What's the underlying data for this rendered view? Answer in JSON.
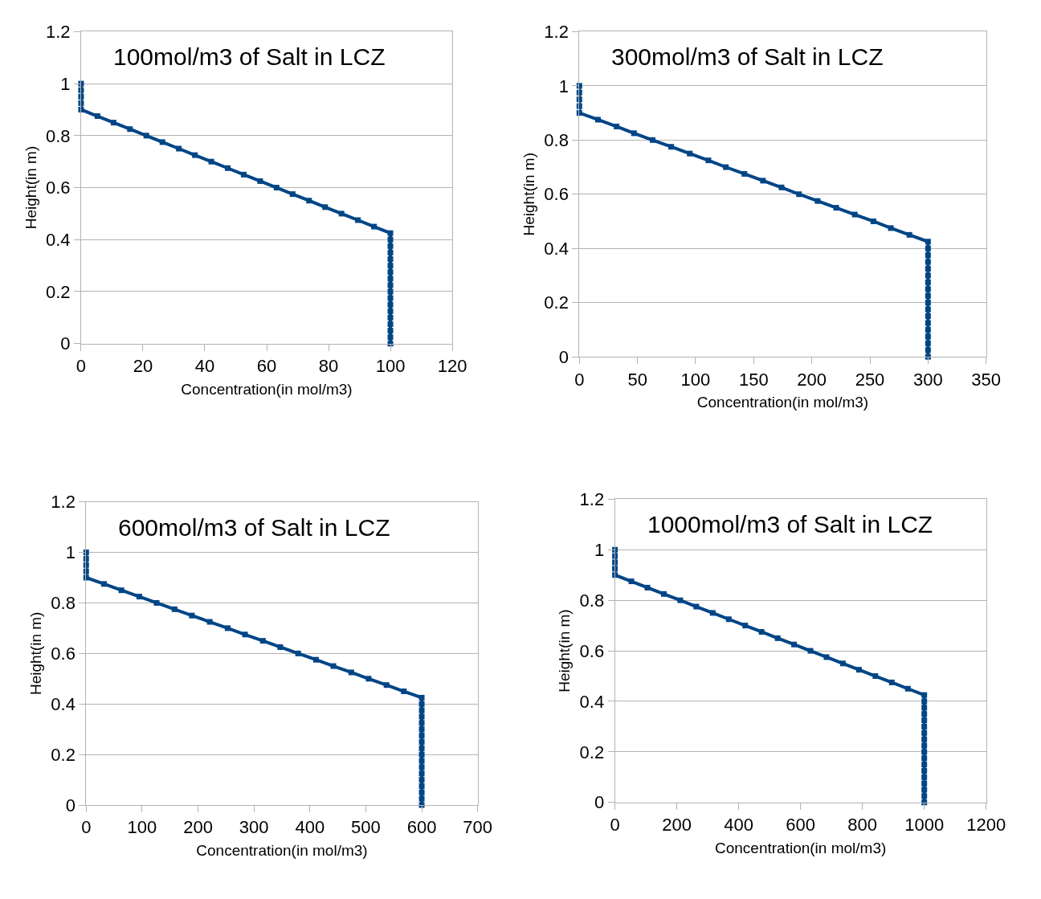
{
  "chart_data": [
    {
      "type": "line",
      "title": "100mol/m3 of Salt in LCZ",
      "xlabel": "Concentration(in mol/m3)",
      "ylabel": "Height(in m)",
      "xlim": [
        0,
        120
      ],
      "xticks": [
        0,
        20,
        40,
        60,
        80,
        100,
        120
      ],
      "ylim": [
        0,
        1.2
      ],
      "yticks": [
        0,
        0.2,
        0.4,
        0.6,
        0.8,
        1,
        1.2
      ],
      "grid": "y",
      "marker": "square",
      "line_style": "solid",
      "series": [
        {
          "color": "#004586",
          "x": [
            0,
            0,
            0,
            0,
            0,
            5.3,
            10.5,
            15.8,
            21.1,
            26.3,
            31.6,
            36.8,
            42.1,
            47.4,
            52.6,
            57.9,
            63.2,
            68.4,
            73.7,
            78.9,
            84.2,
            89.5,
            94.7,
            100,
            100,
            100,
            100,
            100,
            100,
            100,
            100,
            100,
            100,
            100,
            100,
            100,
            100,
            100,
            100,
            100,
            100
          ],
          "values": [
            1,
            0.975,
            0.95,
            0.925,
            0.9,
            0.875,
            0.85,
            0.825,
            0.8,
            0.775,
            0.75,
            0.725,
            0.7,
            0.675,
            0.65,
            0.625,
            0.6,
            0.575,
            0.55,
            0.525,
            0.5,
            0.475,
            0.45,
            0.425,
            0.4,
            0.375,
            0.35,
            0.325,
            0.3,
            0.275,
            0.25,
            0.225,
            0.2,
            0.175,
            0.15,
            0.125,
            0.1,
            0.075,
            0.05,
            0.025,
            0
          ]
        }
      ]
    },
    {
      "type": "line",
      "title": "300mol/m3 of Salt in LCZ",
      "xlabel": "Concentration(in mol/m3)",
      "ylabel": "Height(in m)",
      "xlim": [
        0,
        350
      ],
      "xticks": [
        0,
        50,
        100,
        150,
        200,
        250,
        300,
        350
      ],
      "ylim": [
        0,
        1.2
      ],
      "yticks": [
        0,
        0.2,
        0.4,
        0.6,
        0.8,
        1,
        1.2
      ],
      "grid": "y",
      "marker": "square",
      "line_style": "solid",
      "series": [
        {
          "color": "#004586",
          "x": [
            0,
            0,
            0,
            0,
            0,
            16,
            32,
            47,
            63,
            79,
            95,
            111,
            126,
            142,
            158,
            174,
            189,
            205,
            221,
            237,
            253,
            268,
            284,
            300,
            300,
            300,
            300,
            300,
            300,
            300,
            300,
            300,
            300,
            300,
            300,
            300,
            300,
            300,
            300,
            300,
            300
          ],
          "values": [
            1,
            0.975,
            0.95,
            0.925,
            0.9,
            0.875,
            0.85,
            0.825,
            0.8,
            0.775,
            0.75,
            0.725,
            0.7,
            0.675,
            0.65,
            0.625,
            0.6,
            0.575,
            0.55,
            0.525,
            0.5,
            0.475,
            0.45,
            0.425,
            0.4,
            0.375,
            0.35,
            0.325,
            0.3,
            0.275,
            0.25,
            0.225,
            0.2,
            0.175,
            0.15,
            0.125,
            0.1,
            0.075,
            0.05,
            0.025,
            0
          ]
        }
      ]
    },
    {
      "type": "line",
      "title": "600mol/m3 of Salt in LCZ",
      "xlabel": "Concentration(in mol/m3)",
      "ylabel": "Height(in m)",
      "xlim": [
        0,
        700
      ],
      "xticks": [
        0,
        100,
        200,
        300,
        400,
        500,
        600,
        700
      ],
      "ylim": [
        0,
        1.2
      ],
      "yticks": [
        0,
        0.2,
        0.4,
        0.6,
        0.8,
        1,
        1.2
      ],
      "grid": "y",
      "marker": "square",
      "line_style": "solid",
      "series": [
        {
          "color": "#004586",
          "x": [
            0,
            0,
            0,
            0,
            0,
            32,
            63,
            95,
            126,
            158,
            189,
            221,
            253,
            284,
            316,
            347,
            379,
            411,
            442,
            474,
            505,
            537,
            568,
            600,
            600,
            600,
            600,
            600,
            600,
            600,
            600,
            600,
            600,
            600,
            600,
            600,
            600,
            600,
            600,
            600,
            600
          ],
          "values": [
            1,
            0.975,
            0.95,
            0.925,
            0.9,
            0.875,
            0.85,
            0.825,
            0.8,
            0.775,
            0.75,
            0.725,
            0.7,
            0.675,
            0.65,
            0.625,
            0.6,
            0.575,
            0.55,
            0.525,
            0.5,
            0.475,
            0.45,
            0.425,
            0.4,
            0.375,
            0.35,
            0.325,
            0.3,
            0.275,
            0.25,
            0.225,
            0.2,
            0.175,
            0.15,
            0.125,
            0.1,
            0.075,
            0.05,
            0.025,
            0
          ]
        }
      ]
    },
    {
      "type": "line",
      "title": "1000mol/m3 of Salt in LCZ",
      "xlabel": "Concentration(in mol/m3)",
      "ylabel": "Height(in m)",
      "xlim": [
        0,
        1200
      ],
      "xticks": [
        0,
        200,
        400,
        600,
        800,
        1000,
        1200
      ],
      "ylim": [
        0,
        1.2
      ],
      "yticks": [
        0,
        0.2,
        0.4,
        0.6,
        0.8,
        1,
        1.2
      ],
      "grid": "y",
      "marker": "square",
      "line_style": "solid",
      "series": [
        {
          "color": "#004586",
          "x": [
            0,
            0,
            0,
            0,
            0,
            53,
            105,
            158,
            211,
            263,
            316,
            368,
            421,
            474,
            526,
            579,
            632,
            684,
            737,
            789,
            842,
            895,
            947,
            1000,
            1000,
            1000,
            1000,
            1000,
            1000,
            1000,
            1000,
            1000,
            1000,
            1000,
            1000,
            1000,
            1000,
            1000,
            1000,
            1000,
            1000
          ],
          "values": [
            1,
            0.975,
            0.95,
            0.925,
            0.9,
            0.875,
            0.85,
            0.825,
            0.8,
            0.775,
            0.75,
            0.725,
            0.7,
            0.675,
            0.65,
            0.625,
            0.6,
            0.575,
            0.55,
            0.525,
            0.5,
            0.475,
            0.45,
            0.425,
            0.4,
            0.375,
            0.35,
            0.325,
            0.3,
            0.275,
            0.25,
            0.225,
            0.2,
            0.175,
            0.15,
            0.125,
            0.1,
            0.075,
            0.05,
            0.025,
            0
          ]
        }
      ]
    }
  ]
}
